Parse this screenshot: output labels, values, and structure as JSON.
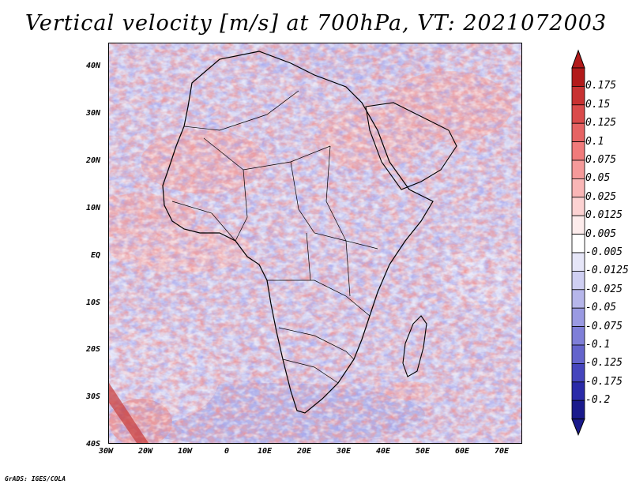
{
  "title": "Vertical velocity [m/s] at 700hPa, VT: 2021072003",
  "credit": "GrADS: IGES/COLA",
  "map": {
    "variable": "Vertical velocity",
    "units": "m/s",
    "level": "700hPa",
    "valid_time": "2021072003",
    "lat_labels": [
      "40N",
      "30N",
      "20N",
      "10N",
      "EQ",
      "10S",
      "20S",
      "30S",
      "40S"
    ],
    "lon_labels": [
      "30W",
      "20W",
      "10W",
      "0",
      "10E",
      "20E",
      "30E",
      "40E",
      "50E",
      "60E",
      "70E"
    ],
    "lat_range": [
      -40,
      45
    ],
    "lon_range": [
      -30,
      75
    ]
  },
  "colorbar": {
    "labels": [
      "0.175",
      "0.15",
      "0.125",
      "0.1",
      "0.075",
      "0.05",
      "0.025",
      "0.0125",
      "0.005",
      "-0.005",
      "-0.0125",
      "-0.025",
      "-0.05",
      "-0.075",
      "-0.1",
      "-0.125",
      "-0.175",
      "-0.2"
    ],
    "colors": [
      "#b21a1a",
      "#c83232",
      "#da4b4b",
      "#e66363",
      "#f07b7b",
      "#f59a9a",
      "#f9b6b6",
      "#fcd2d2",
      "#fdecec",
      "#ffffff",
      "#e6e6f8",
      "#cfcff2",
      "#b6b6ea",
      "#9a9ae2",
      "#7f7fd8",
      "#6464cc",
      "#4545bd",
      "#2a2aa8",
      "#1a1a8c"
    ]
  }
}
